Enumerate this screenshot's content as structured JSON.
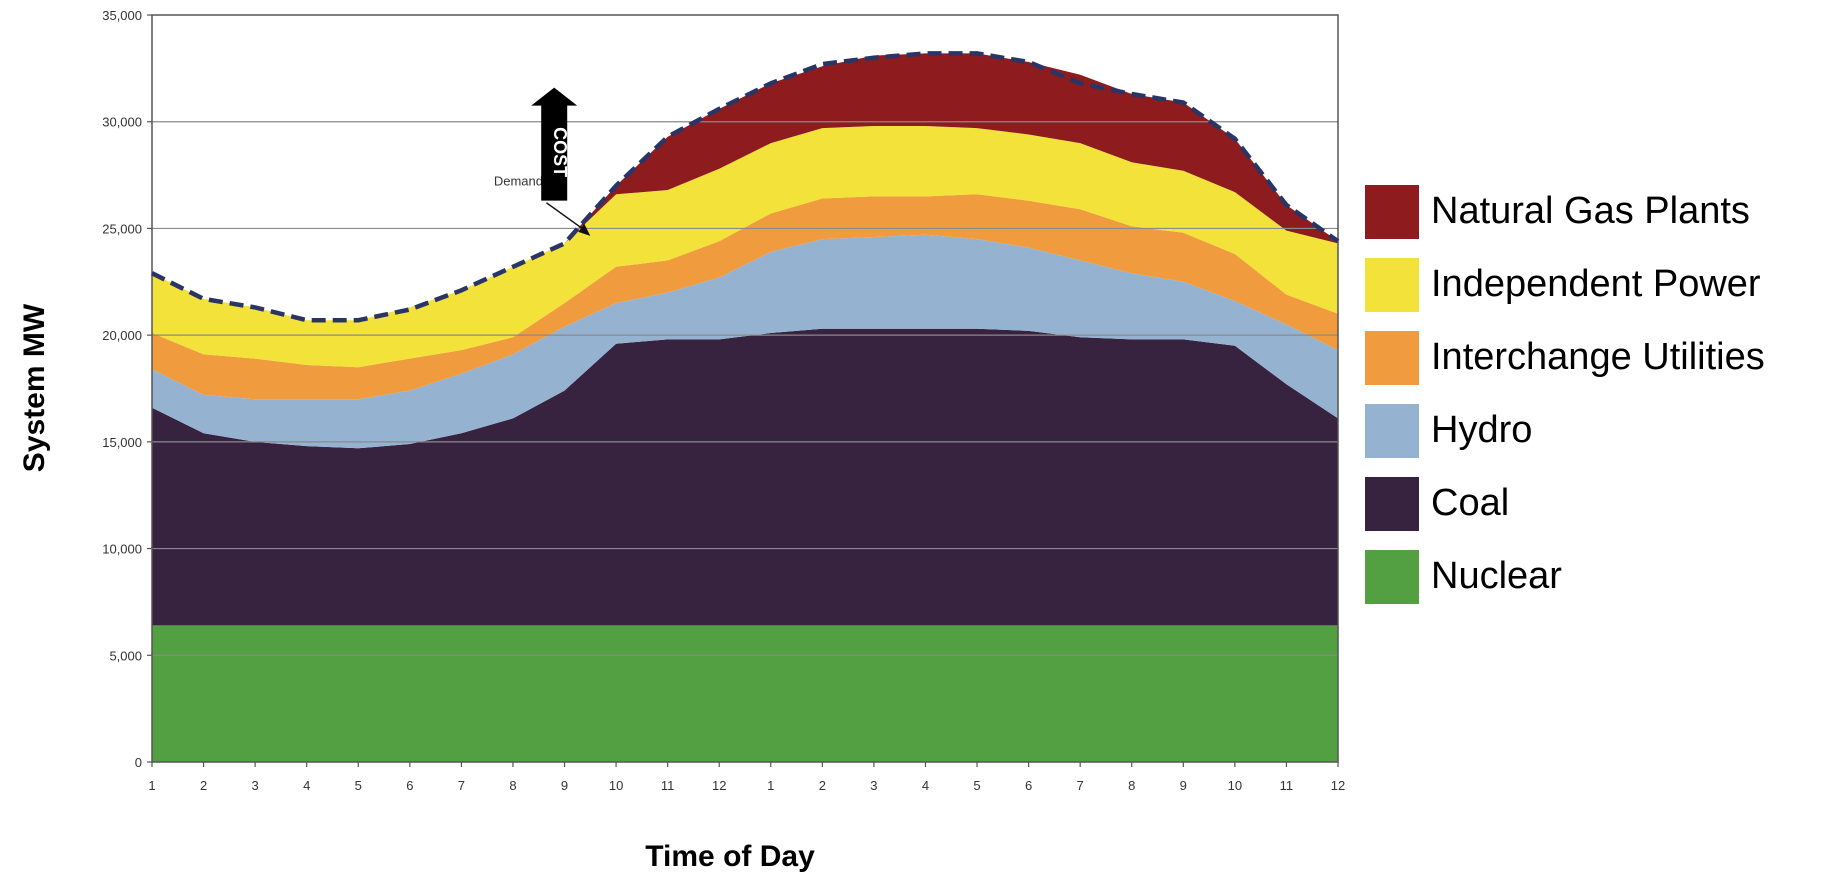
{
  "chart_data": {
    "type": "area",
    "stacked": true,
    "title": "",
    "xlabel": "Time of Day",
    "ylabel": "System MW",
    "ylim": [
      0,
      35000
    ],
    "yticks": [
      "0",
      "5,000",
      "10,000",
      "15,000",
      "20,000",
      "25,000",
      "30,000",
      "35,000"
    ],
    "x_ticks": [
      "1",
      "2",
      "3",
      "4",
      "5",
      "6",
      "7",
      "8",
      "9",
      "10",
      "11",
      "12",
      "1",
      "2",
      "3",
      "4",
      "5",
      "6",
      "7",
      "8",
      "9",
      "10",
      "11",
      "12"
    ],
    "grid": "horizontal",
    "legend_position": "right",
    "series": [
      {
        "name": "Nuclear",
        "color": "#52a041",
        "values": [
          6400,
          6400,
          6400,
          6400,
          6400,
          6400,
          6400,
          6400,
          6400,
          6400,
          6400,
          6400,
          6400,
          6400,
          6400,
          6400,
          6400,
          6400,
          6400,
          6400,
          6400,
          6400,
          6400,
          6400
        ]
      },
      {
        "name": "Coal",
        "color": "#372240",
        "values": [
          10200,
          9000,
          8600,
          8400,
          8300,
          8500,
          9000,
          9700,
          11000,
          13200,
          13400,
          13400,
          13700,
          13900,
          13900,
          13900,
          13900,
          13800,
          13500,
          13400,
          13400,
          13100,
          11300,
          9700
        ]
      },
      {
        "name": "Hydro",
        "color": "#95b3d1",
        "values": [
          1800,
          1800,
          2000,
          2200,
          2300,
          2500,
          2800,
          3000,
          3000,
          1900,
          2200,
          2900,
          3800,
          4200,
          4300,
          4400,
          4200,
          3900,
          3600,
          3100,
          2700,
          2100,
          2800,
          3200
        ]
      },
      {
        "name": "Interchange Utilities",
        "color": "#ef9b3e",
        "values": [
          1700,
          1900,
          1900,
          1600,
          1500,
          1500,
          1100,
          800,
          1100,
          1700,
          1500,
          1700,
          1800,
          1900,
          1900,
          1800,
          2100,
          2200,
          2400,
          2200,
          2300,
          2200,
          1400,
          1700
        ]
      },
      {
        "name": "Independent Power",
        "color": "#f2e23a",
        "values": [
          2800,
          2600,
          2400,
          2100,
          2200,
          2400,
          2800,
          3300,
          2800,
          3400,
          3300,
          3400,
          3300,
          3300,
          3300,
          3300,
          3100,
          3100,
          3100,
          3000,
          2900,
          2900,
          3000,
          3300
        ]
      },
      {
        "name": "Natural Gas Plants",
        "color": "#8e1b1e",
        "values": [
          0,
          0,
          0,
          0,
          0,
          0,
          0,
          0,
          0,
          400,
          2500,
          2800,
          2800,
          2900,
          3300,
          3400,
          3500,
          3400,
          3200,
          3200,
          3200,
          2500,
          1200,
          100
        ]
      }
    ],
    "demand": {
      "label": "Demand",
      "values": [
        22900,
        21700,
        21300,
        20700,
        20700,
        21200,
        22100,
        23200,
        24300,
        27000,
        29300,
        30600,
        31800,
        32700,
        33000,
        33200,
        33200,
        32800,
        31800,
        31300,
        30900,
        29200,
        26100,
        24400
      ]
    },
    "annotation": "COST"
  }
}
